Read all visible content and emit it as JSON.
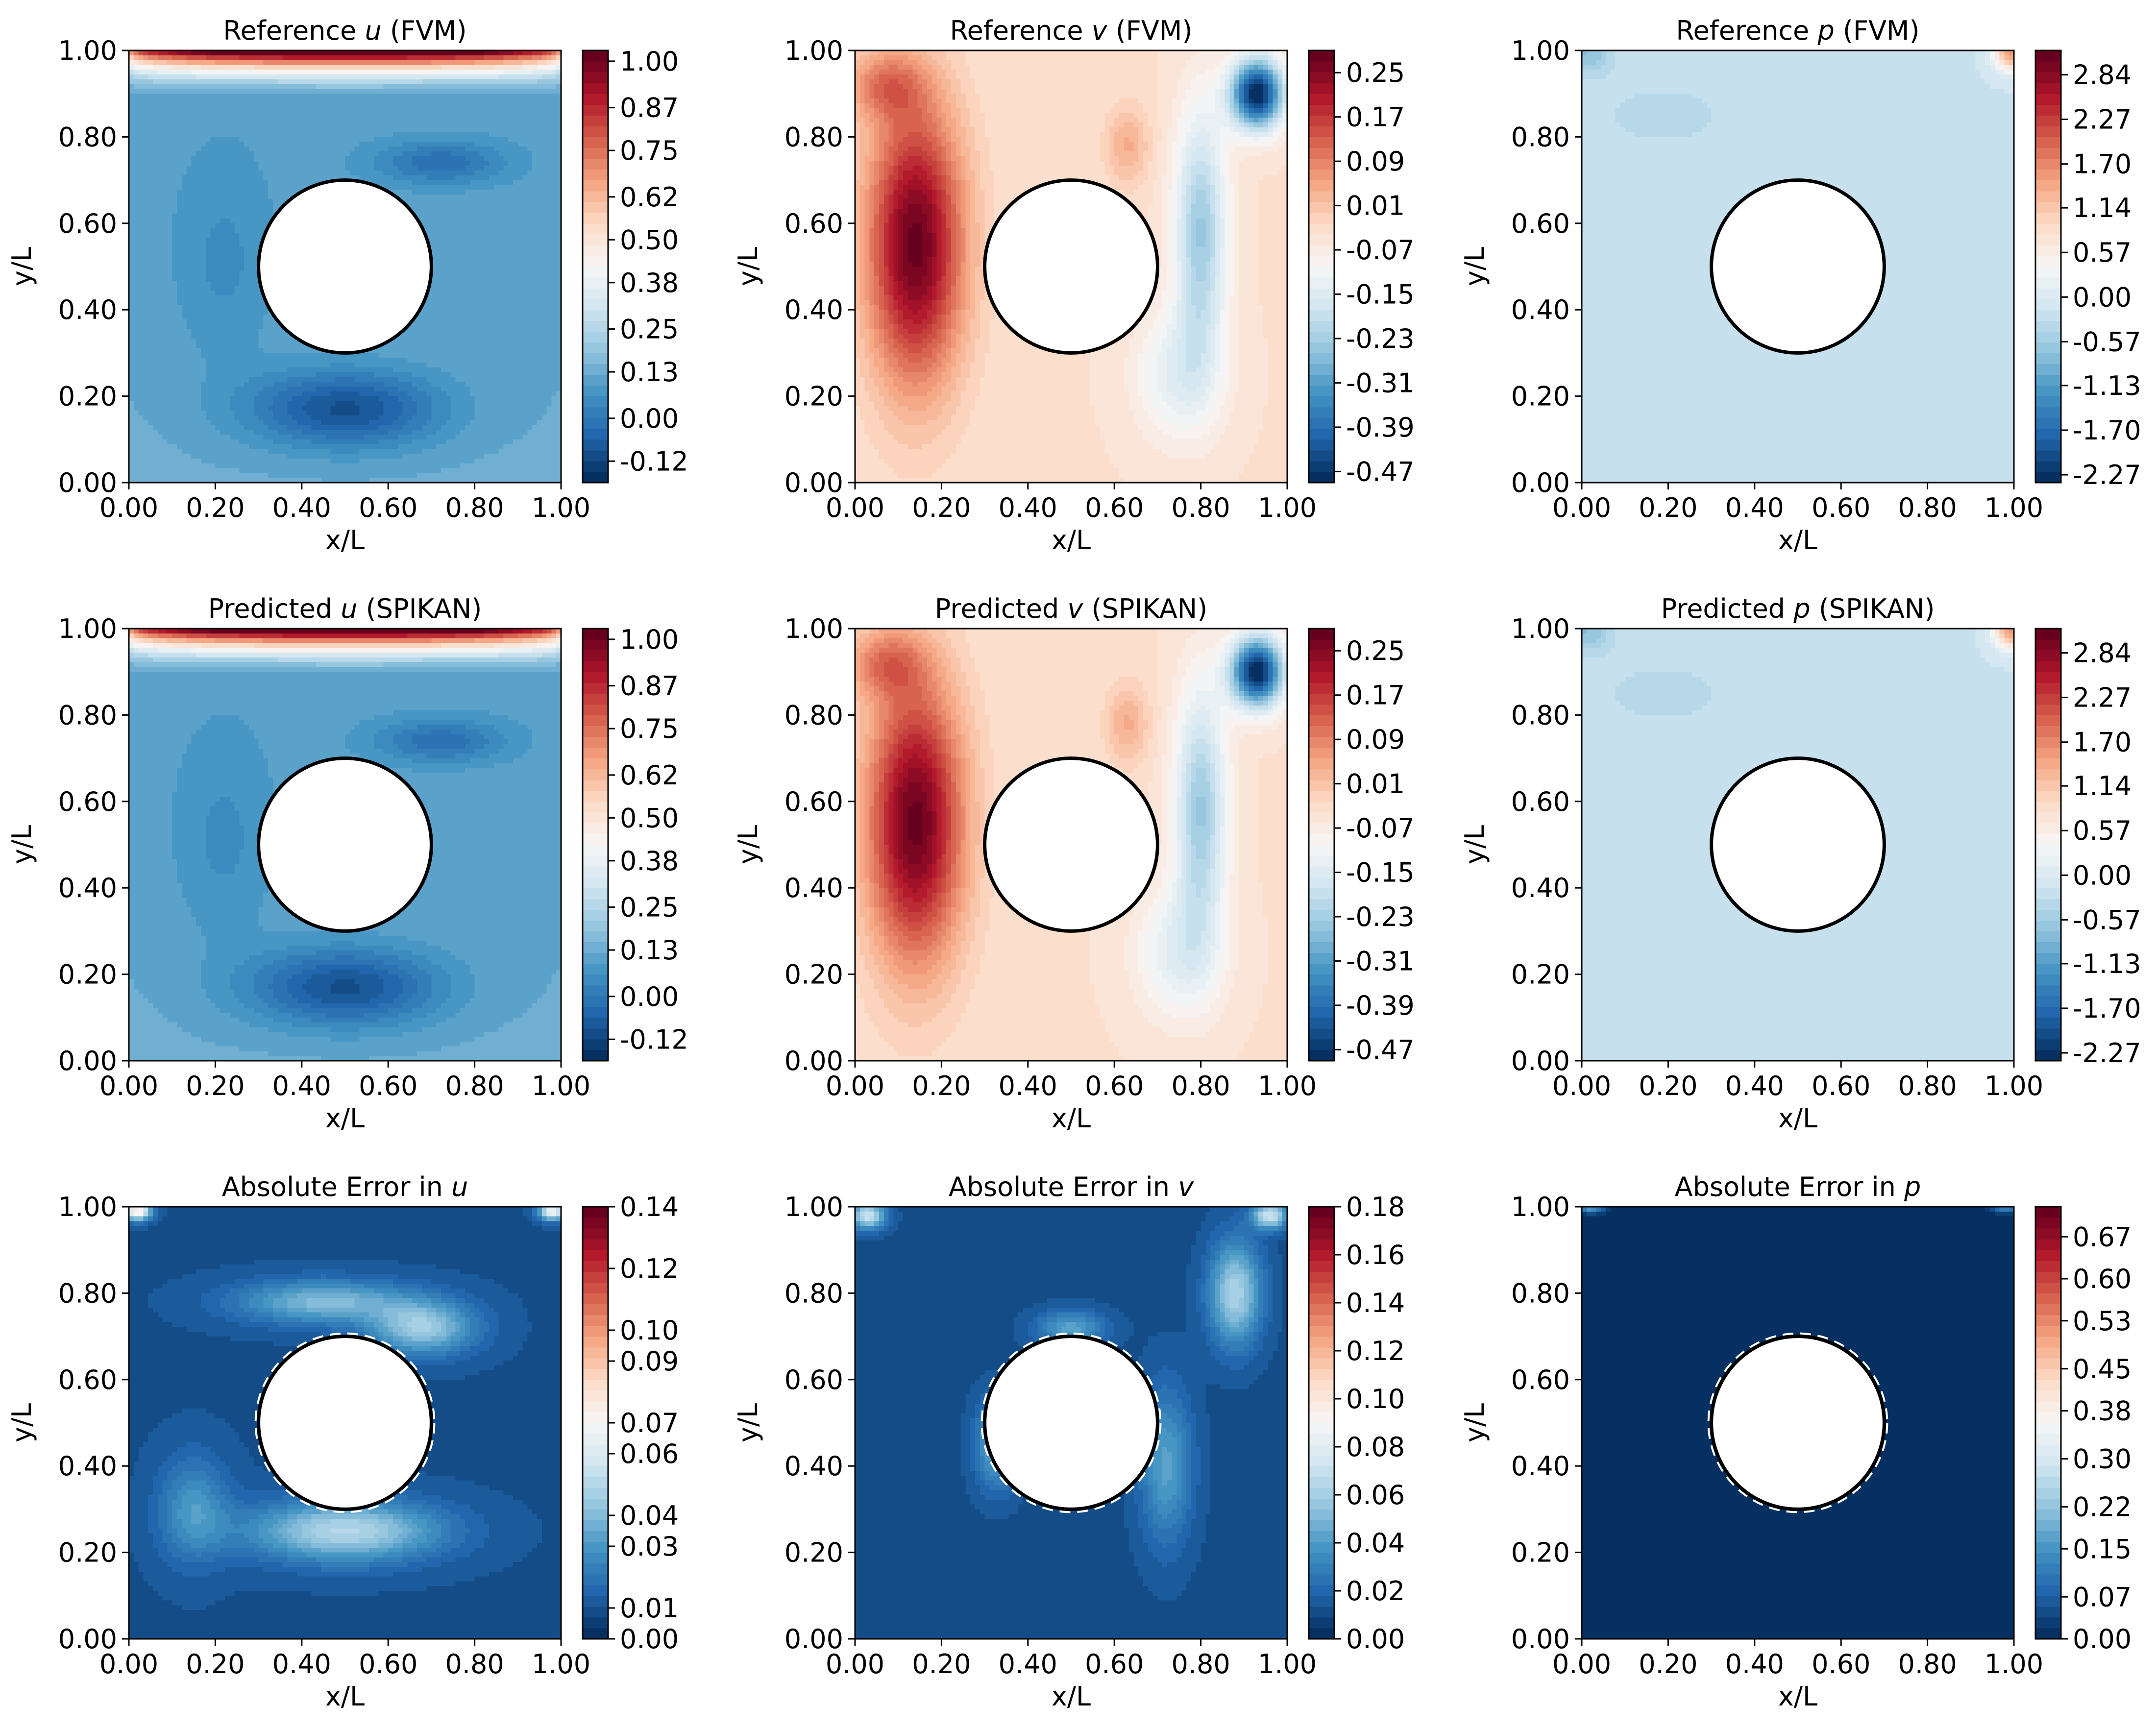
{
  "palette": {
    "rdbu": [
      "#053061",
      "#2166ac",
      "#4393c3",
      "#92c5de",
      "#d1e5f0",
      "#f7f7f7",
      "#fddbc7",
      "#f4a582",
      "#d6604d",
      "#b2182b",
      "#67001f"
    ],
    "circle_edge": "#000000",
    "circle_fill": "#ffffff"
  },
  "chart_data": [
    {
      "type": "heatmap",
      "id": "ref-u",
      "title": {
        "pre": "Reference ",
        "var": "u",
        "post": " (FVM)"
      },
      "xlabel": "x/L",
      "ylabel": "y/L",
      "xlim": [
        0,
        1
      ],
      "ylim": [
        0,
        1
      ],
      "xticks": [
        "0.00",
        "0.20",
        "0.40",
        "0.60",
        "0.80",
        "1.00"
      ],
      "yticks": [
        "0.00",
        "0.20",
        "0.40",
        "0.60",
        "0.80",
        "1.00"
      ],
      "colorbar": {
        "min": -0.18,
        "max": 1.03,
        "ticks": [
          "-0.12",
          "0.00",
          "0.13",
          "0.25",
          "0.38",
          "0.50",
          "0.62",
          "0.75",
          "0.87",
          "1.00"
        ]
      },
      "obstacle": {
        "shape": "circle",
        "cx": 0.5,
        "cy": 0.5,
        "r": 0.2
      },
      "field": "u"
    },
    {
      "type": "heatmap",
      "id": "ref-v",
      "title": {
        "pre": "Reference ",
        "var": "v",
        "post": " (FVM)"
      },
      "xlabel": "x/L",
      "ylabel": "y/L",
      "xlim": [
        0,
        1
      ],
      "ylim": [
        0,
        1
      ],
      "xticks": [
        "0.00",
        "0.20",
        "0.40",
        "0.60",
        "0.80",
        "1.00"
      ],
      "yticks": [
        "0.00",
        "0.20",
        "0.40",
        "0.60",
        "0.80",
        "1.00"
      ],
      "colorbar": {
        "min": -0.49,
        "max": 0.29,
        "ticks": [
          "-0.47",
          "-0.39",
          "-0.31",
          "-0.23",
          "-0.15",
          "-0.07",
          "0.01",
          "0.09",
          "0.17",
          "0.25"
        ]
      },
      "obstacle": {
        "shape": "circle",
        "cx": 0.5,
        "cy": 0.5,
        "r": 0.2
      },
      "field": "v"
    },
    {
      "type": "heatmap",
      "id": "ref-p",
      "title": {
        "pre": "Reference ",
        "var": "p",
        "post": " (FVM)"
      },
      "xlabel": "x/L",
      "ylabel": "y/L",
      "xlim": [
        0,
        1
      ],
      "ylim": [
        0,
        1
      ],
      "xticks": [
        "0.00",
        "0.20",
        "0.40",
        "0.60",
        "0.80",
        "1.00"
      ],
      "yticks": [
        "0.00",
        "0.20",
        "0.40",
        "0.60",
        "0.80",
        "1.00"
      ],
      "colorbar": {
        "min": -2.37,
        "max": 3.15,
        "ticks": [
          "-2.27",
          "-1.70",
          "-1.13",
          "-0.57",
          "0.00",
          "0.57",
          "1.14",
          "1.70",
          "2.27",
          "2.84"
        ]
      },
      "obstacle": {
        "shape": "circle",
        "cx": 0.5,
        "cy": 0.5,
        "r": 0.2
      },
      "field": "p"
    },
    {
      "type": "heatmap",
      "id": "pred-u",
      "title": {
        "pre": "Predicted ",
        "var": "u",
        "post": " (SPIKAN)"
      },
      "xlabel": "x/L",
      "ylabel": "y/L",
      "xlim": [
        0,
        1
      ],
      "ylim": [
        0,
        1
      ],
      "xticks": [
        "0.00",
        "0.20",
        "0.40",
        "0.60",
        "0.80",
        "1.00"
      ],
      "yticks": [
        "0.00",
        "0.20",
        "0.40",
        "0.60",
        "0.80",
        "1.00"
      ],
      "colorbar": {
        "min": -0.18,
        "max": 1.03,
        "ticks": [
          "-0.12",
          "0.00",
          "0.13",
          "0.25",
          "0.38",
          "0.50",
          "0.62",
          "0.75",
          "0.87",
          "1.00"
        ]
      },
      "obstacle": {
        "shape": "circle",
        "cx": 0.5,
        "cy": 0.5,
        "r": 0.2
      },
      "field": "u"
    },
    {
      "type": "heatmap",
      "id": "pred-v",
      "title": {
        "pre": "Predicted ",
        "var": "v",
        "post": " (SPIKAN)"
      },
      "xlabel": "x/L",
      "ylabel": "y/L",
      "xlim": [
        0,
        1
      ],
      "ylim": [
        0,
        1
      ],
      "xticks": [
        "0.00",
        "0.20",
        "0.40",
        "0.60",
        "0.80",
        "1.00"
      ],
      "yticks": [
        "0.00",
        "0.20",
        "0.40",
        "0.60",
        "0.80",
        "1.00"
      ],
      "colorbar": {
        "min": -0.49,
        "max": 0.29,
        "ticks": [
          "-0.47",
          "-0.39",
          "-0.31",
          "-0.23",
          "-0.15",
          "-0.07",
          "0.01",
          "0.09",
          "0.17",
          "0.25"
        ]
      },
      "obstacle": {
        "shape": "circle",
        "cx": 0.5,
        "cy": 0.5,
        "r": 0.2
      },
      "field": "v"
    },
    {
      "type": "heatmap",
      "id": "pred-p",
      "title": {
        "pre": "Predicted ",
        "var": "p",
        "post": " (SPIKAN)"
      },
      "xlabel": "x/L",
      "ylabel": "y/L",
      "xlim": [
        0,
        1
      ],
      "ylim": [
        0,
        1
      ],
      "xticks": [
        "0.00",
        "0.20",
        "0.40",
        "0.60",
        "0.80",
        "1.00"
      ],
      "yticks": [
        "0.00",
        "0.20",
        "0.40",
        "0.60",
        "0.80",
        "1.00"
      ],
      "colorbar": {
        "min": -2.37,
        "max": 3.15,
        "ticks": [
          "-2.27",
          "-1.70",
          "-1.13",
          "-0.57",
          "0.00",
          "0.57",
          "1.14",
          "1.70",
          "2.27",
          "2.84"
        ]
      },
      "obstacle": {
        "shape": "circle",
        "cx": 0.5,
        "cy": 0.5,
        "r": 0.2
      },
      "field": "p"
    },
    {
      "type": "heatmap",
      "id": "err-u",
      "title": {
        "pre": "Absolute Error in ",
        "var": "u",
        "post": ""
      },
      "xlabel": "x/L",
      "ylabel": "y/L",
      "xlim": [
        0,
        1
      ],
      "ylim": [
        0,
        1
      ],
      "xticks": [
        "0.00",
        "0.20",
        "0.40",
        "0.60",
        "0.80",
        "1.00"
      ],
      "yticks": [
        "0.00",
        "0.20",
        "0.40",
        "0.60",
        "0.80",
        "1.00"
      ],
      "colorbar": {
        "min": 0.0,
        "max": 0.14,
        "ticks": [
          "0.00",
          "0.01",
          "0.03",
          "0.04",
          "0.06",
          "0.07",
          "0.09",
          "0.10",
          "0.12",
          "0.14"
        ]
      },
      "obstacle": {
        "shape": "circle",
        "cx": 0.5,
        "cy": 0.5,
        "r": 0.2,
        "dashed_ring": true
      },
      "field": "eu"
    },
    {
      "type": "heatmap",
      "id": "err-v",
      "title": {
        "pre": "Absolute Error in ",
        "var": "v",
        "post": ""
      },
      "xlabel": "x/L",
      "ylabel": "y/L",
      "xlim": [
        0,
        1
      ],
      "ylim": [
        0,
        1
      ],
      "xticks": [
        "0.00",
        "0.20",
        "0.40",
        "0.60",
        "0.80",
        "1.00"
      ],
      "yticks": [
        "0.00",
        "0.20",
        "0.40",
        "0.60",
        "0.80",
        "1.00"
      ],
      "colorbar": {
        "min": 0.0,
        "max": 0.18,
        "ticks": [
          "0.00",
          "0.02",
          "0.04",
          "0.06",
          "0.08",
          "0.10",
          "0.12",
          "0.14",
          "0.16",
          "0.18"
        ]
      },
      "obstacle": {
        "shape": "circle",
        "cx": 0.5,
        "cy": 0.5,
        "r": 0.2,
        "dashed_ring": true
      },
      "field": "ev"
    },
    {
      "type": "heatmap",
      "id": "err-p",
      "title": {
        "pre": "Absolute Error in ",
        "var": "p",
        "post": ""
      },
      "xlabel": "x/L",
      "ylabel": "y/L",
      "xlim": [
        0,
        1
      ],
      "ylim": [
        0,
        1
      ],
      "xticks": [
        "0.00",
        "0.20",
        "0.40",
        "0.60",
        "0.80",
        "1.00"
      ],
      "yticks": [
        "0.00",
        "0.20",
        "0.40",
        "0.60",
        "0.80",
        "1.00"
      ],
      "colorbar": {
        "min": 0.0,
        "max": 0.72,
        "ticks": [
          "0.00",
          "0.07",
          "0.15",
          "0.22",
          "0.30",
          "0.38",
          "0.45",
          "0.53",
          "0.60",
          "0.67"
        ]
      },
      "obstacle": {
        "shape": "circle",
        "cx": 0.5,
        "cy": 0.5,
        "r": 0.2,
        "dashed_ring": true
      },
      "field": "ep"
    }
  ]
}
